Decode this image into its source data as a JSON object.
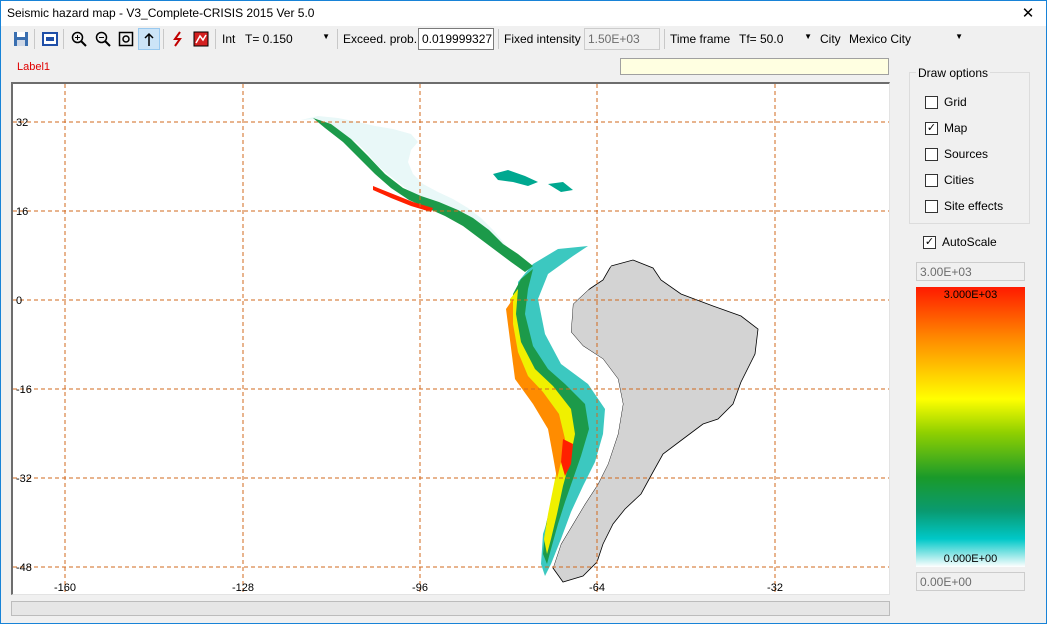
{
  "window": {
    "title": "Seismic hazard map - V3_Complete-CRISIS 2015 Ver 5.0",
    "close_glyph": "✕"
  },
  "toolbar": {
    "int_label": "Int",
    "intensity_value": "T= 0.150",
    "exceed_label": "Exceed. prob.",
    "exceed_value": "0.019999327",
    "fixed_label": "Fixed intensity",
    "fixed_value": "1.50E+03",
    "timeframe_label": "Time frame",
    "timeframe_value": "Tf= 50.0",
    "city_label": "City",
    "city_value": "Mexico City"
  },
  "label1": "Label1",
  "map": {
    "y_ticks": [
      "32",
      "16",
      "0",
      "-16",
      "-32",
      "-48"
    ],
    "x_ticks": [
      "-160",
      "-128",
      "-96",
      "-64",
      "-32"
    ]
  },
  "draw_options": {
    "title": "Draw options",
    "items": [
      {
        "label": "Grid",
        "checked": false
      },
      {
        "label": "Map",
        "checked": true
      },
      {
        "label": "Sources",
        "checked": false
      },
      {
        "label": "Cities",
        "checked": false
      },
      {
        "label": "Site effects",
        "checked": false
      }
    ]
  },
  "autoscale": {
    "label": "AutoScale",
    "checked": true
  },
  "scale": {
    "max_input": "3.00E+03",
    "min_input": "0.00E+00",
    "bar_max_label": "3.000E+03",
    "bar_min_label": "0.000E+00"
  },
  "colors": {
    "grid": "#d2691e",
    "land": "#d3d3d3",
    "scale_top": "#ff1a00",
    "scale_bottom": "#ffffff"
  }
}
